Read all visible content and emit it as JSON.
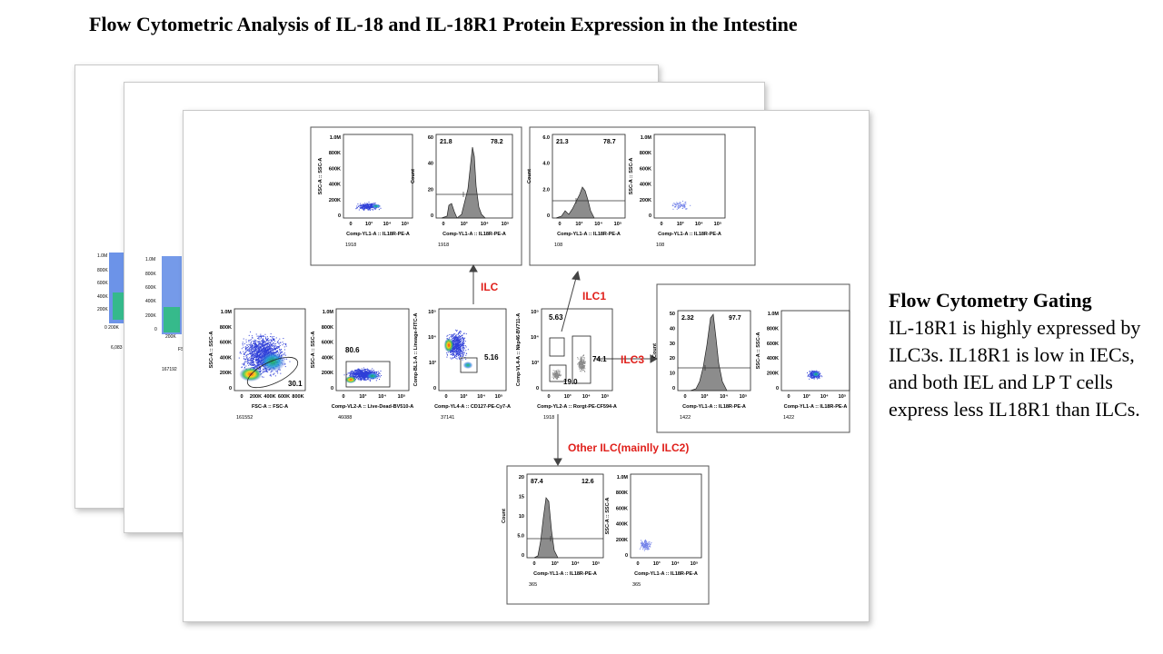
{
  "page": {
    "title": "Flow Cytometric Analysis of IL-18 and IL-18R1 Protein Expression in the Intestine"
  },
  "sidebar": {
    "heading": "Flow Cytometry Gating",
    "body": "IL-18R1 is highly expressed by ILC3s. IL18R1 is low in IECs, and both IEL and LP T cells express less IL18R1 than ILCs."
  },
  "background_sheets": {
    "sheet1": {
      "yticks": [
        "1.0M",
        "800K",
        "600K",
        "400K",
        "200K"
      ],
      "xtick": "0 200K",
      "count": "6,083"
    },
    "sheet2": {
      "yticks": [
        "1.0M",
        "800K",
        "600K",
        "400K",
        "200K",
        "0"
      ],
      "xtick": "200K",
      "count": "167192",
      "axis": "FS"
    }
  },
  "gating": {
    "population_labels": {
      "ilc": "ILC",
      "ilc1": "ILC1",
      "ilc3": "ILC3",
      "other": "Other ILC(mainlly ILC2)"
    },
    "plots": [
      {
        "xlabel": "FSC-A :: FSC-A",
        "ylabel": "SSC-A :: SSC-A",
        "xticks": [
          "0",
          "200K",
          "400K",
          "600K",
          "800K"
        ],
        "yticks": [
          "1.0M",
          "800K",
          "600K",
          "400K",
          "200K",
          "0"
        ],
        "gate_value": "30.1",
        "events": "161552"
      },
      {
        "xlabel": "Comp-VL2-A :: Live-Dead-BV510-A",
        "ylabel": "SSC-A :: SSC-A",
        "xticks": [
          "0",
          "10³",
          "10⁴",
          "10⁵"
        ],
        "yticks": [
          "1.0M",
          "800K",
          "600K",
          "400K",
          "200K",
          "0"
        ],
        "gate_value": "80.6",
        "events": "46088"
      },
      {
        "xlabel": "Comp-YL4-A :: CD127-PE-Cy7-A",
        "ylabel": "Comp-BL1-A :: Lineage-FITC-A",
        "xticks": [
          "0",
          "10³",
          "10⁴",
          "10⁵"
        ],
        "yticks": [
          "10⁵",
          "10⁴",
          "10³",
          "0"
        ],
        "gate_value": "5.16",
        "events": "37141"
      },
      {
        "xlabel": "Comp-YL2-A :: Rorgt-PE-CF594-A",
        "ylabel": "Comp-VL4-A :: Nkp46-BV711-A",
        "xticks": [
          "0",
          "10³",
          "10⁴",
          "10⁵"
        ],
        "yticks": [
          "10⁵",
          "10⁴",
          "10³",
          "0"
        ],
        "gate_ilc1": "5.63",
        "gate_other": "19.0",
        "gate_ilc3": "74.1",
        "events": "1918"
      }
    ],
    "ilc_panel": {
      "scatter": {
        "xlabel": "Comp-YL1-A :: IL18R-PE-A",
        "ylabel": "SSC-A :: SSC-A",
        "xticks": [
          "0",
          "10³",
          "10⁴",
          "10⁵"
        ],
        "yticks": [
          "1.0M",
          "800K",
          "600K",
          "400K",
          "200K",
          "0"
        ],
        "events": "1918"
      },
      "hist": {
        "xlabel": "Comp-YL1-A :: IL18R-PE-A",
        "ylabel": "Count",
        "xticks": [
          "0",
          "10³",
          "10⁴",
          "10⁵"
        ],
        "yticks": [
          "60",
          "40",
          "20",
          "0"
        ],
        "neg": "21.8",
        "pos": "78.2",
        "events": "1918"
      }
    },
    "ilc1_panel": {
      "hist": {
        "xlabel": "Comp-YL1-A :: IL18R-PE-A",
        "ylabel": "Count",
        "xticks": [
          "0",
          "10³",
          "10⁴",
          "10⁵"
        ],
        "yticks": [
          "6.0",
          "4.0",
          "2.0",
          "0"
        ],
        "neg": "21.3",
        "pos": "78.7",
        "events": "108"
      },
      "scatter": {
        "xlabel": "Comp-YL1-A :: IL18R-PE-A",
        "ylabel": "SSC-A :: SSC-A",
        "xticks": [
          "0",
          "10³",
          "10⁴",
          "10⁵"
        ],
        "yticks": [
          "1.0M",
          "800K",
          "600K",
          "400K",
          "200K",
          "0"
        ],
        "events": "108"
      }
    },
    "ilc3_panel": {
      "hist": {
        "xlabel": "Comp-YL1-A :: IL18R-PE-A",
        "ylabel": "Count",
        "xticks": [
          "0",
          "10³",
          "10⁴",
          "10⁵"
        ],
        "yticks": [
          "50",
          "40",
          "30",
          "20",
          "10",
          "0"
        ],
        "neg": "2.32",
        "pos": "97.7",
        "events": "1422"
      },
      "scatter": {
        "xlabel": "Comp-YL1-A :: IL18R-PE-A",
        "ylabel": "SSC-A :: SSC-A",
        "xticks": [
          "0",
          "10³",
          "10⁴",
          "10⁵"
        ],
        "yticks": [
          "1.0M",
          "800K",
          "600K",
          "400K",
          "200K",
          "0"
        ],
        "events": "1422"
      }
    },
    "other_panel": {
      "hist": {
        "xlabel": "Comp-YL1-A :: IL18R-PE-A",
        "ylabel": "Count",
        "xticks": [
          "0",
          "10³",
          "10⁴",
          "10⁵"
        ],
        "yticks": [
          "20",
          "15",
          "10",
          "5.0",
          "0"
        ],
        "neg": "87.4",
        "pos": "12.6",
        "events": "365"
      },
      "scatter": {
        "xlabel": "Comp-YL1-A :: IL18R-PE-A",
        "ylabel": "SSC-A :: SSC-A",
        "xticks": [
          "0",
          "10³",
          "10⁴",
          "10⁵"
        ],
        "yticks": [
          "1.0M",
          "800K",
          "600K",
          "400K",
          "200K",
          "0"
        ],
        "events": "365"
      }
    }
  },
  "colors": {
    "gate_label": "#e0201b",
    "hist_fill": "#8c8c8c",
    "dense": "#ff2a00",
    "sparse": "#2f3fd8"
  }
}
